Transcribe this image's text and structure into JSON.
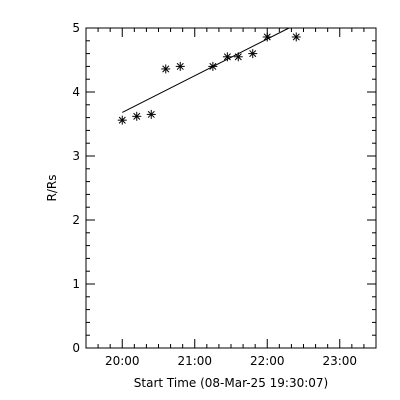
{
  "chart_data": {
    "type": "scatter",
    "title": "",
    "xlabel": "Start Time (08-Mar-25 19:30:07)",
    "ylabel": "R/Rs",
    "x_unit": "time HH:MM",
    "xlim": [
      "19:30",
      "23:30"
    ],
    "ylim": [
      0,
      5
    ],
    "x_ticks": [
      "20:00",
      "21:00",
      "22:00",
      "23:00"
    ],
    "y_ticks": [
      "0",
      "1",
      "2",
      "3",
      "4",
      "5"
    ],
    "grid": false,
    "legend": "none",
    "marker": "asterisk",
    "color": "#000000",
    "points": [
      {
        "x": "20:00",
        "y": 3.56
      },
      {
        "x": "20:12",
        "y": 3.62
      },
      {
        "x": "20:24",
        "y": 3.65
      },
      {
        "x": "20:36",
        "y": 4.36
      },
      {
        "x": "20:48",
        "y": 4.4
      },
      {
        "x": "21:15",
        "y": 4.4
      },
      {
        "x": "21:27",
        "y": 4.55
      },
      {
        "x": "21:36",
        "y": 4.55
      },
      {
        "x": "21:48",
        "y": 4.6
      },
      {
        "x": "22:00",
        "y": 4.86
      },
      {
        "x": "22:24",
        "y": 4.86
      }
    ],
    "fit_line": [
      {
        "x": "20:00",
        "y": 3.68
      },
      {
        "x": "22:18",
        "y": 5.0
      }
    ]
  }
}
